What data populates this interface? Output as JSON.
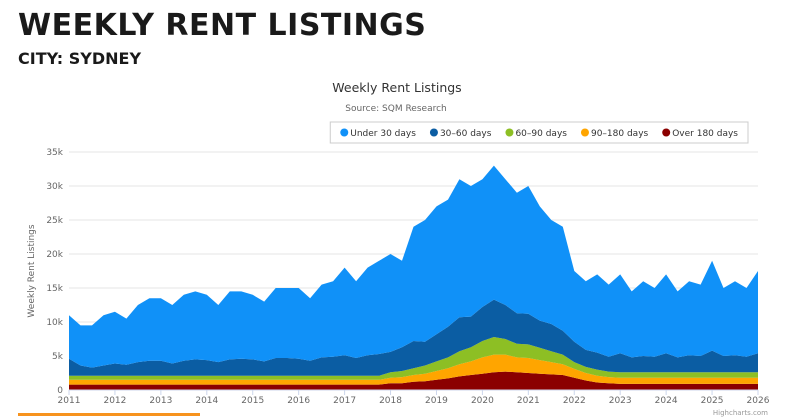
{
  "page": {
    "title": "WEEKLY RENT LISTINGS",
    "subtitle": "CITY: SYDNEY"
  },
  "chart_data": {
    "type": "area",
    "stacked": true,
    "title": "Weekly Rent Listings",
    "subtitle": "Source: SQM Research",
    "ylabel": "Weekly Rent Listings",
    "xlabel": "",
    "ylim": [
      0,
      35000
    ],
    "yticks": [
      "0",
      "5k",
      "10k",
      "15k",
      "20k",
      "25k",
      "30k",
      "35k"
    ],
    "xticks": [
      "2011",
      "2012",
      "2013",
      "2014",
      "2015",
      "2016",
      "2017",
      "2018",
      "2019",
      "2020",
      "2021",
      "2022",
      "2023",
      "2024",
      "2025",
      "2026"
    ],
    "grid": true,
    "legend_position": "top-right",
    "credit": "Highcharts.com",
    "x": [
      "2011-01",
      "2011-04",
      "2011-07",
      "2011-10",
      "2012-01",
      "2012-04",
      "2012-07",
      "2012-10",
      "2013-01",
      "2013-04",
      "2013-07",
      "2013-10",
      "2014-01",
      "2014-04",
      "2014-07",
      "2014-10",
      "2015-01",
      "2015-04",
      "2015-07",
      "2015-10",
      "2016-01",
      "2016-04",
      "2016-07",
      "2016-10",
      "2017-01",
      "2017-04",
      "2017-07",
      "2017-10",
      "2018-01",
      "2018-04",
      "2018-07",
      "2018-10",
      "2019-01",
      "2019-04",
      "2019-07",
      "2019-10",
      "2020-01",
      "2020-04",
      "2020-07",
      "2020-10",
      "2021-01",
      "2021-04",
      "2021-07",
      "2021-10",
      "2022-01",
      "2022-04",
      "2022-07",
      "2022-10",
      "2023-01",
      "2023-04",
      "2023-07",
      "2023-10",
      "2024-01",
      "2024-04",
      "2024-07",
      "2024-10",
      "2025-01",
      "2025-04",
      "2025-07",
      "2025-10",
      "2026-01"
    ],
    "series": [
      {
        "name": "Under 30 days",
        "color": "#1091f8",
        "values": [
          6400,
          5900,
          6200,
          7400,
          7600,
          6800,
          8400,
          9200,
          9200,
          8600,
          9700,
          10000,
          9600,
          8400,
          10000,
          9900,
          9500,
          8800,
          10300,
          10300,
          10400,
          9200,
          10700,
          11100,
          12900,
          11300,
          12900,
          13700,
          14400,
          12700,
          16800,
          17900,
          18800,
          18700,
          20300,
          19200,
          18800,
          19700,
          18500,
          17700,
          18800,
          16800,
          15300,
          15300,
          10400,
          10100,
          11500,
          10600,
          11600,
          9700,
          11000,
          10100,
          11600,
          9700,
          10900,
          10500,
          13200,
          10000,
          10900,
          10100,
          12100
        ]
      },
      {
        "name": "30–60 days",
        "color": "#0b5da3",
        "values": [
          2500,
          1500,
          1200,
          1500,
          1800,
          1600,
          2000,
          2200,
          2200,
          1800,
          2200,
          2400,
          2300,
          2000,
          2400,
          2500,
          2400,
          2100,
          2600,
          2600,
          2500,
          2200,
          2700,
          2800,
          3000,
          2600,
          3000,
          3200,
          3000,
          3500,
          4000,
          3500,
          4000,
          4500,
          5000,
          4500,
          5000,
          5500,
          5000,
          4500,
          4500,
          4000,
          4000,
          3500,
          3000,
          2500,
          2500,
          2200,
          2800,
          2200,
          2400,
          2300,
          2800,
          2200,
          2500,
          2400,
          3200,
          2400,
          2500,
          2300,
          2800
        ]
      },
      {
        "name": "60–90 days",
        "color": "#8dbf24",
        "values": [
          600,
          600,
          600,
          600,
          600,
          600,
          600,
          600,
          600,
          600,
          600,
          600,
          600,
          600,
          600,
          600,
          600,
          600,
          600,
          600,
          600,
          600,
          600,
          600,
          600,
          600,
          600,
          600,
          800,
          900,
          1000,
          1200,
          1400,
          1600,
          1900,
          2100,
          2400,
          2600,
          2300,
          2000,
          2000,
          1800,
          1600,
          1400,
          1000,
          900,
          900,
          800,
          800,
          800,
          800,
          800,
          800,
          800,
          800,
          800,
          800,
          800,
          800,
          800,
          800
        ]
      },
      {
        "name": "90–180 days",
        "color": "#ffa500",
        "values": [
          700,
          700,
          700,
          700,
          700,
          700,
          700,
          700,
          700,
          700,
          700,
          700,
          700,
          700,
          700,
          700,
          700,
          700,
          700,
          700,
          700,
          700,
          700,
          700,
          700,
          700,
          700,
          700,
          800,
          900,
          1000,
          1100,
          1300,
          1500,
          1800,
          2000,
          2400,
          2600,
          2500,
          2200,
          2200,
          2000,
          1800,
          1600,
          1300,
          1100,
          1000,
          900,
          900,
          900,
          900,
          900,
          900,
          900,
          900,
          900,
          900,
          900,
          900,
          900,
          900
        ]
      },
      {
        "name": "Over 180 days",
        "color": "#8b0000",
        "values": [
          800,
          800,
          800,
          800,
          800,
          800,
          800,
          800,
          800,
          800,
          800,
          800,
          800,
          800,
          800,
          800,
          800,
          800,
          800,
          800,
          800,
          800,
          800,
          800,
          800,
          800,
          800,
          800,
          1000,
          1000,
          1200,
          1300,
          1500,
          1700,
          2000,
          2200,
          2400,
          2600,
          2700,
          2600,
          2500,
          2400,
          2300,
          2200,
          1800,
          1400,
          1100,
          1000,
          900,
          900,
          900,
          900,
          900,
          900,
          900,
          900,
          900,
          900,
          900,
          900,
          900
        ]
      }
    ]
  }
}
